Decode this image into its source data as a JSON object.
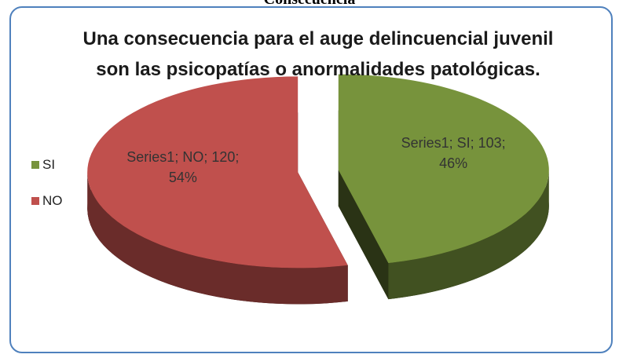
{
  "caption": "Consecuencia",
  "chart_data": {
    "type": "pie",
    "title": "Una consecuencia para el auge delincuencial juvenil  son las psicopatías o anormalidades patológicas.",
    "categories": [
      "SI",
      "NO"
    ],
    "series": [
      {
        "name": "Series1",
        "values": [
          103,
          120
        ],
        "value_labels": [
          "Series1; SI; 103; 46%",
          "Series1; NO; 120; 54%"
        ],
        "colors": [
          "#77933c",
          "#c0504d"
        ]
      }
    ],
    "legend": "left"
  }
}
